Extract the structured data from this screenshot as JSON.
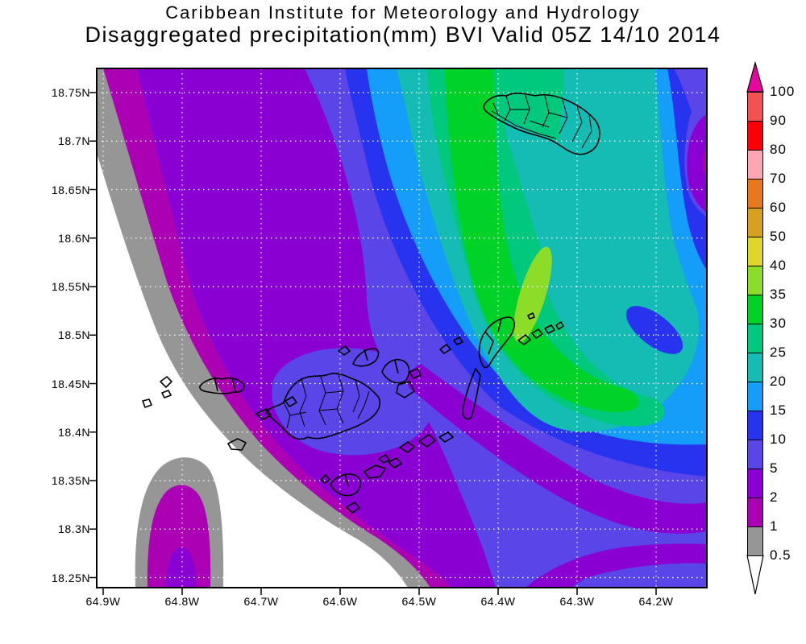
{
  "title": {
    "line1": "Caribbean Institute for Meteorology and Hydrology",
    "line2": "Disaggregated precipitation(mm) BVI Valid 05Z 14/10 2014"
  },
  "axes": {
    "lat_labels": [
      "18.75N",
      "18.7N",
      "18.65N",
      "18.6N",
      "18.55N",
      "18.5N",
      "18.45N",
      "18.4N",
      "18.35N",
      "18.3N",
      "18.25N"
    ],
    "lon_labels": [
      "64.9W",
      "64.8W",
      "64.7W",
      "64.6W",
      "64.5W",
      "64.4W",
      "64.3W",
      "64.2W"
    ]
  },
  "colorbar": {
    "labels": [
      "100",
      "90",
      "80",
      "70",
      "60",
      "50",
      "40",
      "35",
      "30",
      "25",
      "20",
      "15",
      "10",
      "5",
      "2",
      "1",
      "0.5"
    ],
    "segment_colors": [
      "#F25352",
      "#FB0007",
      "#FFA5B4",
      "#E8781E",
      "#D7A021",
      "#DED628",
      "#8CDC28",
      "#00D228",
      "#00C87D",
      "#14BCB4",
      "#149EFA",
      "#2833F0",
      "#5A46E8",
      "#8A00D2",
      "#AC00B4",
      "#969696"
    ],
    "above_max_color": "#E8059E",
    "below_min_color": "#FFFFFF"
  },
  "palette": {
    "white": "#FFFFFF",
    "gray": "#969696",
    "magenta": "#AC00B4",
    "violet": "#8A00D2",
    "blueviolet": "#5A46E8",
    "blue": "#2833F0",
    "cyan": "#149EFA",
    "teal": "#14BCB4",
    "springgreen": "#00C87D",
    "green": "#00D228",
    "yellowgreen": "#8CDC28",
    "gridline": "#FFFFFF",
    "coastline": "#000000",
    "arrow_top": "#E8059E",
    "arrow_bottom": "#FFFFFF"
  },
  "chart_data": {
    "type": "heatmap",
    "subtype": "filled_contour_map",
    "title": "Caribbean Institute for Meteorology and Hydrology",
    "subtitle": "Disaggregated precipitation(mm) BVI Valid 05Z 14/10 2014",
    "variable": "Disaggregated precipitation",
    "units": "mm",
    "region": "BVI",
    "valid_time": "05Z 14/10 2014",
    "x_axis": {
      "label_format": "longitude degrees West",
      "tick_labels": [
        "64.9W",
        "64.8W",
        "64.7W",
        "64.6W",
        "64.5W",
        "64.4W",
        "64.3W",
        "64.2W"
      ],
      "approx_range": [
        64.92,
        64.14
      ]
    },
    "y_axis": {
      "label_format": "latitude degrees North",
      "tick_labels": [
        "18.75N",
        "18.7N",
        "18.65N",
        "18.6N",
        "18.55N",
        "18.5N",
        "18.45N",
        "18.4N",
        "18.35N",
        "18.3N",
        "18.25N"
      ],
      "approx_range": [
        18.24,
        18.78
      ]
    },
    "contour_levels_mm": [
      0.5,
      1,
      2,
      5,
      10,
      15,
      20,
      25,
      30,
      35,
      40,
      50,
      60,
      70,
      80,
      90,
      100
    ],
    "level_band_colors": [
      {
        "band": "<0.5",
        "color": "#FFFFFF"
      },
      {
        "band": "0.5-1",
        "color": "#969696"
      },
      {
        "band": "1-2",
        "color": "#AC00B4"
      },
      {
        "band": "2-5",
        "color": "#8A00D2"
      },
      {
        "band": "5-10",
        "color": "#5A46E8"
      },
      {
        "band": "10-15",
        "color": "#2833F0"
      },
      {
        "band": "15-20",
        "color": "#149EFA"
      },
      {
        "band": "20-25",
        "color": "#14BCB4"
      },
      {
        "band": "25-30",
        "color": "#00C87D"
      },
      {
        "band": "30-35",
        "color": "#00D228"
      },
      {
        "band": "35-40",
        "color": "#8CDC28"
      },
      {
        "band": "40-50",
        "color": "#DED628"
      },
      {
        "band": "50-60",
        "color": "#D7A021"
      },
      {
        "band": "60-70",
        "color": "#E8781E"
      },
      {
        "band": "70-80",
        "color": "#FFA5B4"
      },
      {
        "band": "80-90",
        "color": "#FB0007"
      },
      {
        "band": "90-100",
        "color": "#F25352"
      },
      {
        "band": ">100",
        "color": "#E8059E"
      }
    ],
    "max_band_shown_mm": "35-40",
    "min_band_shown_mm": "<0.5",
    "pattern_summary": "Precipitation below 0.5 mm in the southwest (white) bounded by narrow 0.5-1 (gray) and 1-2 (magenta) bands along a NW-SE arc; broad 2-5 mm violet zone; amounts rise northeastward through 5-10, 10-15, 15-20, 20-25 and 25-30 bands to a 30-35 mm green ridge with an embedded 35-40 mm yellow-green streak near 64.35W 18.5N; parallel 2-5 mm dry slots cross the southeast; small 1-2 mm cell with gray ring at bottom-left; island outlines with cadastral parcels drawn in black; dotted white graticule every 0.05 deg latitude and 0.1 deg longitude"
  }
}
